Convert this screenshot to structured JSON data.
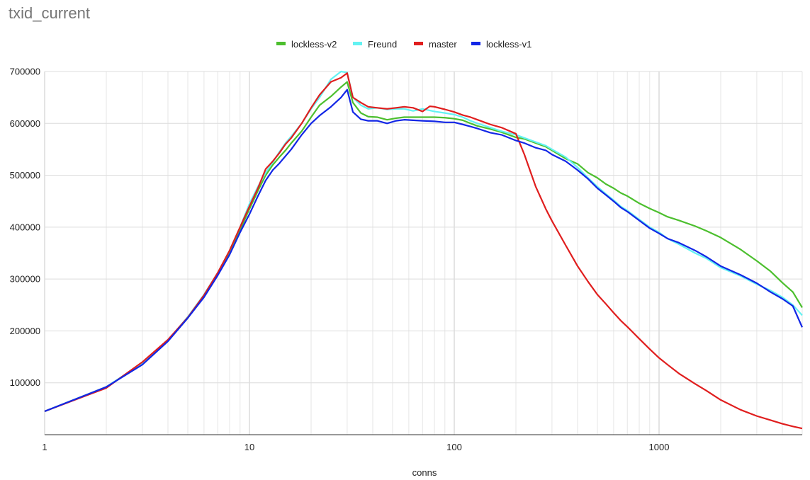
{
  "chart_data": {
    "type": "line",
    "title": "txid_current",
    "xlabel": "conns",
    "ylabel": "",
    "xscale": "log",
    "xlim": [
      1,
      5000
    ],
    "ylim": [
      0,
      700000
    ],
    "grid": true,
    "legend_position": "top-center",
    "x_ticks": [
      {
        "value": 1,
        "label": "1"
      },
      {
        "value": 10,
        "label": "10"
      },
      {
        "value": 100,
        "label": "100"
      },
      {
        "value": 1000,
        "label": "1000"
      }
    ],
    "y_ticks": [
      {
        "value": 100000,
        "label": "100000"
      },
      {
        "value": 200000,
        "label": "200000"
      },
      {
        "value": 300000,
        "label": "300000"
      },
      {
        "value": 400000,
        "label": "400000"
      },
      {
        "value": 500000,
        "label": "500000"
      },
      {
        "value": 600000,
        "label": "600000"
      },
      {
        "value": 700000,
        "label": "700000"
      }
    ],
    "series": [
      {
        "name": "lockless-v2",
        "color": "#4cbf2e",
        "points": [
          [
            1,
            45000
          ],
          [
            2,
            92000
          ],
          [
            3,
            137000
          ],
          [
            4,
            181000
          ],
          [
            5,
            225000
          ],
          [
            6,
            268000
          ],
          [
            7,
            310000
          ],
          [
            8,
            350000
          ],
          [
            9,
            395000
          ],
          [
            10,
            435000
          ],
          [
            11,
            470000
          ],
          [
            12,
            500000
          ],
          [
            13,
            520000
          ],
          [
            14,
            535000
          ],
          [
            15,
            548000
          ],
          [
            16,
            562000
          ],
          [
            18,
            585000
          ],
          [
            20,
            612000
          ],
          [
            22,
            635000
          ],
          [
            25,
            652000
          ],
          [
            28,
            670000
          ],
          [
            30,
            680000
          ],
          [
            32,
            640000
          ],
          [
            35,
            620000
          ],
          [
            38,
            613000
          ],
          [
            42,
            612000
          ],
          [
            47,
            607000
          ],
          [
            52,
            610000
          ],
          [
            57,
            612000
          ],
          [
            63,
            612000
          ],
          [
            70,
            612000
          ],
          [
            80,
            612000
          ],
          [
            90,
            611000
          ],
          [
            100,
            609000
          ],
          [
            110,
            606000
          ],
          [
            120,
            600000
          ],
          [
            130,
            595000
          ],
          [
            150,
            589000
          ],
          [
            170,
            583000
          ],
          [
            200,
            573000
          ],
          [
            220,
            570000
          ],
          [
            250,
            562000
          ],
          [
            280,
            555000
          ],
          [
            300,
            548000
          ],
          [
            350,
            532000
          ],
          [
            400,
            522000
          ],
          [
            450,
            505000
          ],
          [
            500,
            495000
          ],
          [
            550,
            483000
          ],
          [
            600,
            475000
          ],
          [
            650,
            466000
          ],
          [
            700,
            460000
          ],
          [
            800,
            446000
          ],
          [
            900,
            436000
          ],
          [
            1000,
            428000
          ],
          [
            1100,
            420000
          ],
          [
            1250,
            413000
          ],
          [
            1500,
            402000
          ],
          [
            1700,
            393000
          ],
          [
            2000,
            380000
          ],
          [
            2500,
            357000
          ],
          [
            3000,
            335000
          ],
          [
            3500,
            315000
          ],
          [
            4000,
            293000
          ],
          [
            4500,
            275000
          ],
          [
            5000,
            245000
          ]
        ]
      },
      {
        "name": "Freund",
        "color": "#63f2f2",
        "points": [
          [
            1,
            45000
          ],
          [
            2,
            92000
          ],
          [
            3,
            138000
          ],
          [
            4,
            182000
          ],
          [
            5,
            227000
          ],
          [
            6,
            270000
          ],
          [
            7,
            312000
          ],
          [
            8,
            355000
          ],
          [
            9,
            400000
          ],
          [
            10,
            445000
          ],
          [
            11,
            478000
          ],
          [
            12,
            505000
          ],
          [
            13,
            525000
          ],
          [
            14,
            545000
          ],
          [
            15,
            562000
          ],
          [
            16,
            575000
          ],
          [
            18,
            600000
          ],
          [
            20,
            628000
          ],
          [
            22,
            650000
          ],
          [
            25,
            685000
          ],
          [
            28,
            700000
          ],
          [
            30,
            698000
          ],
          [
            32,
            650000
          ],
          [
            35,
            635000
          ],
          [
            38,
            628000
          ],
          [
            42,
            630000
          ],
          [
            47,
            627000
          ],
          [
            52,
            628000
          ],
          [
            57,
            628000
          ],
          [
            63,
            624000
          ],
          [
            70,
            628000
          ],
          [
            80,
            623000
          ],
          [
            90,
            620000
          ],
          [
            100,
            617000
          ],
          [
            110,
            612000
          ],
          [
            120,
            605000
          ],
          [
            130,
            600000
          ],
          [
            150,
            592000
          ],
          [
            170,
            585000
          ],
          [
            200,
            578000
          ],
          [
            220,
            572000
          ],
          [
            250,
            564000
          ],
          [
            280,
            557000
          ],
          [
            300,
            550000
          ],
          [
            350,
            535000
          ],
          [
            400,
            515000
          ],
          [
            450,
            495000
          ],
          [
            500,
            478000
          ],
          [
            550,
            464000
          ],
          [
            600,
            452000
          ],
          [
            650,
            440000
          ],
          [
            700,
            432000
          ],
          [
            800,
            415000
          ],
          [
            900,
            400000
          ],
          [
            1000,
            390000
          ],
          [
            1100,
            378000
          ],
          [
            1250,
            367000
          ],
          [
            1500,
            350000
          ],
          [
            1700,
            340000
          ],
          [
            2000,
            322000
          ],
          [
            2500,
            306000
          ],
          [
            3000,
            290000
          ],
          [
            3500,
            278000
          ],
          [
            4000,
            265000
          ],
          [
            4500,
            250000
          ],
          [
            5000,
            230000
          ]
        ]
      },
      {
        "name": "master",
        "color": "#e01e1e",
        "points": [
          [
            1,
            45000
          ],
          [
            2,
            90000
          ],
          [
            3,
            140000
          ],
          [
            4,
            183000
          ],
          [
            5,
            226000
          ],
          [
            6,
            269000
          ],
          [
            7,
            312000
          ],
          [
            8,
            355000
          ],
          [
            9,
            400000
          ],
          [
            10,
            440000
          ],
          [
            11,
            475000
          ],
          [
            12,
            512000
          ],
          [
            13,
            527000
          ],
          [
            14,
            543000
          ],
          [
            15,
            560000
          ],
          [
            16,
            572000
          ],
          [
            18,
            600000
          ],
          [
            20,
            630000
          ],
          [
            22,
            655000
          ],
          [
            25,
            680000
          ],
          [
            28,
            688000
          ],
          [
            30,
            697000
          ],
          [
            32,
            650000
          ],
          [
            35,
            640000
          ],
          [
            38,
            632000
          ],
          [
            42,
            630000
          ],
          [
            47,
            628000
          ],
          [
            52,
            630000
          ],
          [
            57,
            632000
          ],
          [
            63,
            630000
          ],
          [
            70,
            623000
          ],
          [
            76,
            633000
          ],
          [
            80,
            632000
          ],
          [
            90,
            627000
          ],
          [
            100,
            622000
          ],
          [
            110,
            616000
          ],
          [
            120,
            612000
          ],
          [
            130,
            607000
          ],
          [
            150,
            598000
          ],
          [
            170,
            592000
          ],
          [
            200,
            580000
          ],
          [
            220,
            540000
          ],
          [
            250,
            478000
          ],
          [
            280,
            435000
          ],
          [
            300,
            412000
          ],
          [
            350,
            365000
          ],
          [
            400,
            325000
          ],
          [
            450,
            295000
          ],
          [
            500,
            270000
          ],
          [
            550,
            252000
          ],
          [
            600,
            235000
          ],
          [
            650,
            220000
          ],
          [
            700,
            208000
          ],
          [
            800,
            185000
          ],
          [
            900,
            165000
          ],
          [
            1000,
            148000
          ],
          [
            1100,
            135000
          ],
          [
            1250,
            118000
          ],
          [
            1500,
            98000
          ],
          [
            1700,
            85000
          ],
          [
            2000,
            67000
          ],
          [
            2500,
            48000
          ],
          [
            3000,
            36000
          ],
          [
            3500,
            28000
          ],
          [
            4000,
            21000
          ],
          [
            4500,
            16000
          ],
          [
            5000,
            12000
          ]
        ]
      },
      {
        "name": "lockless-v1",
        "color": "#1226e6",
        "points": [
          [
            1,
            45000
          ],
          [
            2,
            92000
          ],
          [
            3,
            135000
          ],
          [
            4,
            180000
          ],
          [
            5,
            225000
          ],
          [
            6,
            265000
          ],
          [
            7,
            307000
          ],
          [
            8,
            347000
          ],
          [
            9,
            390000
          ],
          [
            10,
            425000
          ],
          [
            11,
            460000
          ],
          [
            12,
            490000
          ],
          [
            13,
            510000
          ],
          [
            14,
            523000
          ],
          [
            15,
            537000
          ],
          [
            16,
            550000
          ],
          [
            18,
            578000
          ],
          [
            20,
            600000
          ],
          [
            22,
            615000
          ],
          [
            25,
            632000
          ],
          [
            28,
            650000
          ],
          [
            30,
            665000
          ],
          [
            32,
            622000
          ],
          [
            35,
            608000
          ],
          [
            38,
            605000
          ],
          [
            42,
            605000
          ],
          [
            47,
            600000
          ],
          [
            52,
            605000
          ],
          [
            57,
            607000
          ],
          [
            63,
            606000
          ],
          [
            70,
            605000
          ],
          [
            80,
            604000
          ],
          [
            90,
            602000
          ],
          [
            100,
            602000
          ],
          [
            110,
            598000
          ],
          [
            120,
            594000
          ],
          [
            130,
            590000
          ],
          [
            150,
            582000
          ],
          [
            170,
            578000
          ],
          [
            200,
            567000
          ],
          [
            220,
            562000
          ],
          [
            250,
            553000
          ],
          [
            280,
            548000
          ],
          [
            300,
            540000
          ],
          [
            350,
            527000
          ],
          [
            400,
            510000
          ],
          [
            450,
            493000
          ],
          [
            500,
            475000
          ],
          [
            550,
            462000
          ],
          [
            600,
            450000
          ],
          [
            650,
            438000
          ],
          [
            700,
            430000
          ],
          [
            800,
            413000
          ],
          [
            900,
            398000
          ],
          [
            1000,
            388000
          ],
          [
            1100,
            378000
          ],
          [
            1250,
            370000
          ],
          [
            1500,
            355000
          ],
          [
            1700,
            343000
          ],
          [
            2000,
            325000
          ],
          [
            2500,
            308000
          ],
          [
            3000,
            292000
          ],
          [
            3500,
            275000
          ],
          [
            4000,
            262000
          ],
          [
            4500,
            248000
          ],
          [
            5000,
            207000
          ]
        ]
      }
    ]
  }
}
